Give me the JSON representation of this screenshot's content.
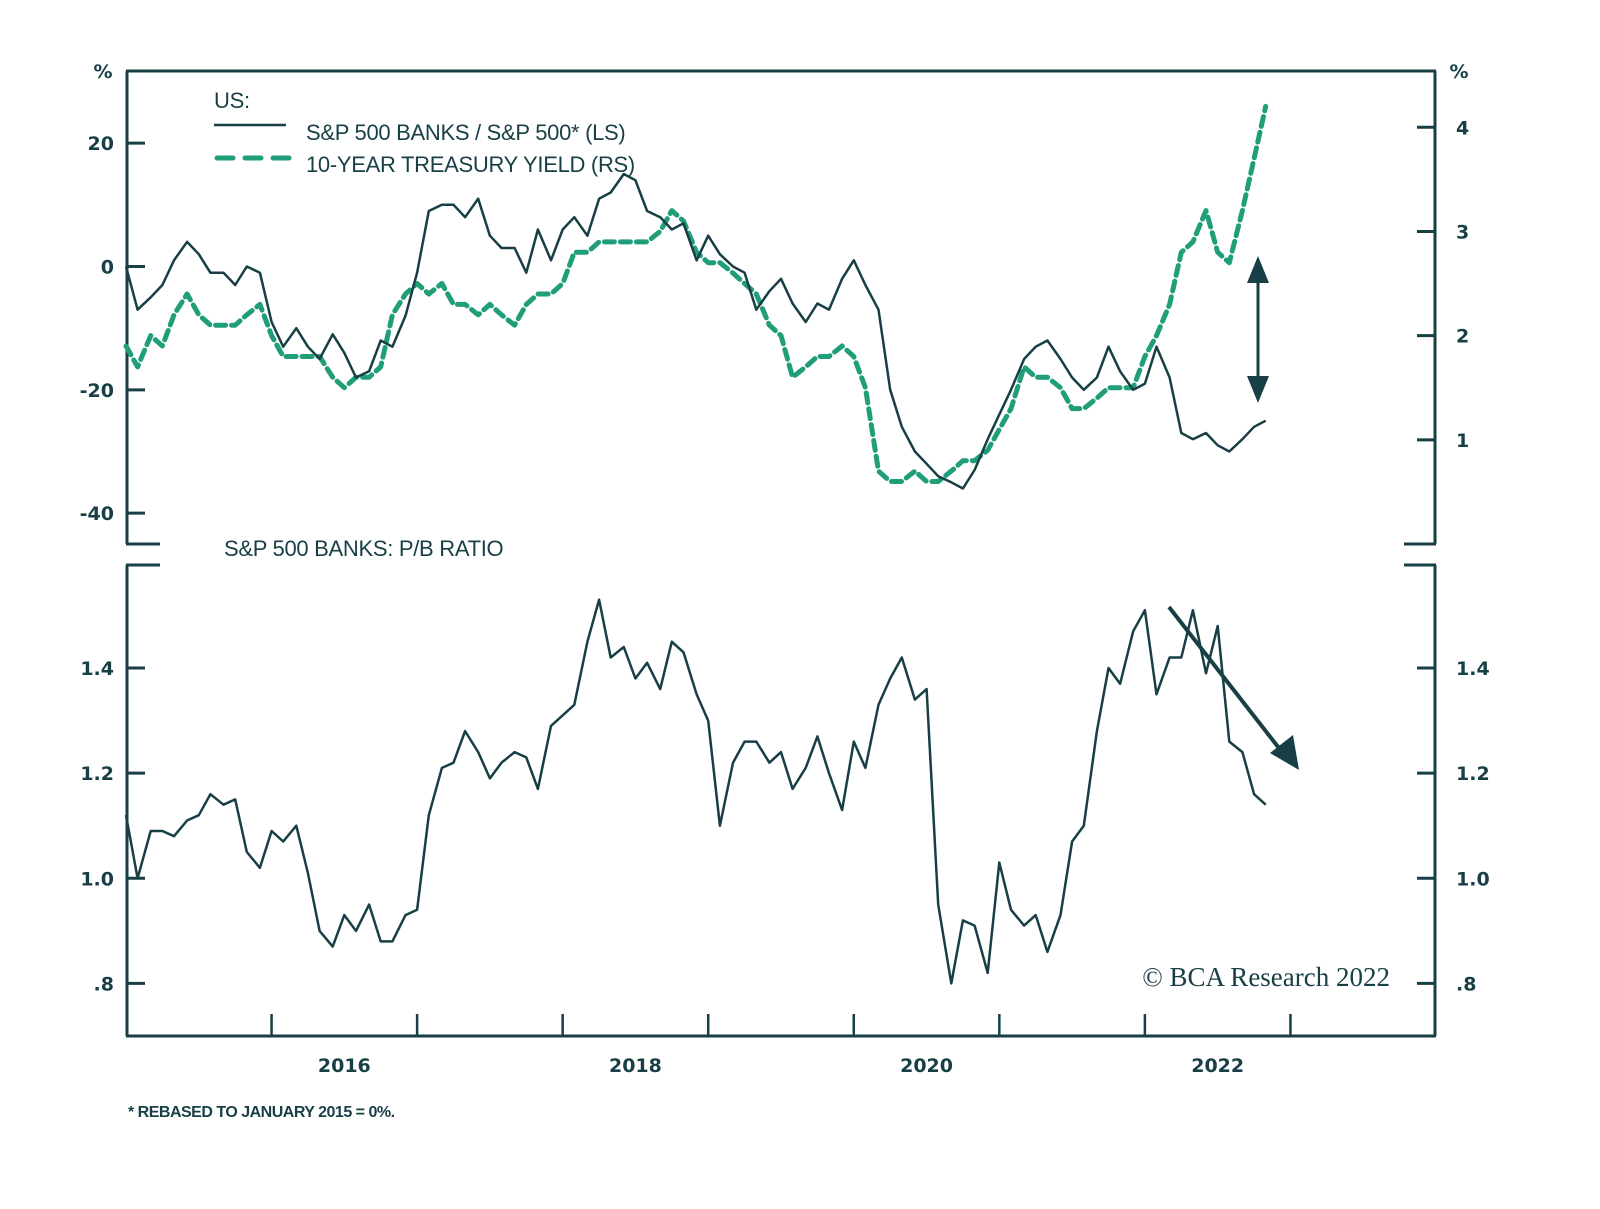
{
  "chart_data": [
    {
      "type": "line",
      "panel": "top",
      "legend_title": "US:",
      "legend_placement": "top-left",
      "left_axis": {
        "unit_label": "%",
        "ticks": [
          20,
          0,
          -20,
          -40
        ],
        "tick_labels": [
          "20",
          "0",
          "-20",
          "-40"
        ],
        "ylim": [
          -45,
          31.7
        ]
      },
      "right_axis": {
        "unit_label": "%",
        "ticks": [
          4,
          3,
          2,
          1
        ],
        "tick_labels": [
          "4",
          "3",
          "2",
          "1"
        ],
        "ylim": [
          0.0,
          4.54
        ]
      },
      "series": [
        {
          "name": "S&P 500 BANKS / S&P 500* (LS)",
          "axis": "left",
          "style": "solid",
          "color": "#173f45",
          "x": [
            2015.0,
            2015.08,
            2015.17,
            2015.25,
            2015.33,
            2015.42,
            2015.5,
            2015.58,
            2015.67,
            2015.75,
            2015.83,
            2015.92,
            2016.0,
            2016.08,
            2016.17,
            2016.25,
            2016.33,
            2016.42,
            2016.5,
            2016.58,
            2016.67,
            2016.75,
            2016.83,
            2016.92,
            2017.0,
            2017.08,
            2017.17,
            2017.25,
            2017.33,
            2017.42,
            2017.5,
            2017.58,
            2017.67,
            2017.75,
            2017.83,
            2017.92,
            2018.0,
            2018.08,
            2018.17,
            2018.25,
            2018.33,
            2018.42,
            2018.5,
            2018.58,
            2018.67,
            2018.75,
            2018.83,
            2018.92,
            2019.0,
            2019.08,
            2019.17,
            2019.25,
            2019.33,
            2019.42,
            2019.5,
            2019.58,
            2019.67,
            2019.75,
            2019.83,
            2019.92,
            2020.0,
            2020.08,
            2020.17,
            2020.25,
            2020.33,
            2020.42,
            2020.5,
            2020.58,
            2020.67,
            2020.75,
            2020.83,
            2020.92,
            2021.0,
            2021.08,
            2021.17,
            2021.25,
            2021.33,
            2021.42,
            2021.5,
            2021.58,
            2021.67,
            2021.75,
            2021.83,
            2021.92,
            2022.0,
            2022.08,
            2022.17,
            2022.25,
            2022.33,
            2022.42,
            2022.5,
            2022.58,
            2022.67,
            2022.75,
            2022.83
          ],
          "values": [
            0,
            -7,
            -5,
            -3,
            1,
            4,
            2,
            -1,
            -1,
            -3,
            0,
            -1,
            -9,
            -13,
            -10,
            -13,
            -15,
            -11,
            -14,
            -18,
            -17,
            -12,
            -13,
            -8,
            -1,
            9,
            10,
            10,
            8,
            11,
            5,
            3,
            3,
            -1,
            6,
            1,
            6,
            8,
            5,
            11,
            12,
            15,
            14,
            9,
            8,
            6,
            7,
            1,
            5,
            2,
            0,
            -1,
            -7,
            -4,
            -2,
            -6,
            -9,
            -6,
            -7,
            -2,
            1,
            -3,
            -7,
            -20,
            -26,
            -30,
            -32,
            -34,
            -35,
            -36,
            -33,
            -28,
            -24,
            -20,
            -15,
            -13,
            -12,
            -15,
            -18,
            -20,
            -18,
            -13,
            -17,
            -20,
            -19,
            -13,
            -18,
            -27,
            -28,
            -27,
            -29,
            -30,
            -28,
            -26,
            -25
          ],
          "annotation": "double-headed vertical arrow marking divergence from yield (2022)"
        },
        {
          "name": "10-YEAR TREASURY YIELD (RS)",
          "axis": "right",
          "style": "dashed",
          "color": "#1f9e79",
          "x": [
            2015.0,
            2015.08,
            2015.17,
            2015.25,
            2015.33,
            2015.42,
            2015.5,
            2015.58,
            2015.67,
            2015.75,
            2015.83,
            2015.92,
            2016.0,
            2016.08,
            2016.17,
            2016.25,
            2016.33,
            2016.42,
            2016.5,
            2016.58,
            2016.67,
            2016.75,
            2016.83,
            2016.92,
            2017.0,
            2017.08,
            2017.17,
            2017.25,
            2017.33,
            2017.42,
            2017.5,
            2017.58,
            2017.67,
            2017.75,
            2017.83,
            2017.92,
            2018.0,
            2018.08,
            2018.17,
            2018.25,
            2018.33,
            2018.42,
            2018.5,
            2018.58,
            2018.67,
            2018.75,
            2018.83,
            2018.92,
            2019.0,
            2019.08,
            2019.17,
            2019.25,
            2019.33,
            2019.42,
            2019.5,
            2019.58,
            2019.67,
            2019.75,
            2019.83,
            2019.92,
            2020.0,
            2020.08,
            2020.17,
            2020.25,
            2020.33,
            2020.42,
            2020.5,
            2020.58,
            2020.67,
            2020.75,
            2020.83,
            2020.92,
            2021.0,
            2021.08,
            2021.17,
            2021.25,
            2021.33,
            2021.42,
            2021.5,
            2021.58,
            2021.67,
            2021.75,
            2021.83,
            2021.92,
            2022.0,
            2022.08,
            2022.17,
            2022.25,
            2022.33,
            2022.42,
            2022.5,
            2022.58,
            2022.67,
            2022.75,
            2022.83
          ],
          "values": [
            1.9,
            1.7,
            2.0,
            1.9,
            2.2,
            2.4,
            2.2,
            2.1,
            2.1,
            2.1,
            2.2,
            2.3,
            2.0,
            1.8,
            1.8,
            1.8,
            1.8,
            1.6,
            1.5,
            1.6,
            1.6,
            1.7,
            2.2,
            2.4,
            2.5,
            2.4,
            2.5,
            2.3,
            2.3,
            2.2,
            2.3,
            2.2,
            2.1,
            2.3,
            2.4,
            2.4,
            2.5,
            2.8,
            2.8,
            2.9,
            2.9,
            2.9,
            2.9,
            2.9,
            3.0,
            3.2,
            3.1,
            2.8,
            2.7,
            2.7,
            2.6,
            2.5,
            2.4,
            2.1,
            2.0,
            1.6,
            1.7,
            1.8,
            1.8,
            1.9,
            1.8,
            1.5,
            0.7,
            0.6,
            0.6,
            0.7,
            0.6,
            0.6,
            0.7,
            0.8,
            0.8,
            0.9,
            1.1,
            1.3,
            1.7,
            1.6,
            1.6,
            1.5,
            1.3,
            1.3,
            1.4,
            1.5,
            1.5,
            1.5,
            1.8,
            2.0,
            2.3,
            2.8,
            2.9,
            3.2,
            2.8,
            2.7,
            3.2,
            3.7,
            4.2
          ]
        }
      ]
    },
    {
      "type": "line",
      "panel": "bottom",
      "title": "S&P 500 BANKS: P/B RATIO",
      "left_axis": {
        "ticks": [
          1.4,
          1.2,
          1.0,
          0.8
        ],
        "tick_labels": [
          "1.4",
          "1.2",
          "1.0",
          ".8"
        ],
        "ylim": [
          0.7,
          1.596
        ]
      },
      "right_axis": {
        "ticks": [
          1.4,
          1.2,
          1.0,
          0.8
        ],
        "tick_labels": [
          "1.4",
          "1.2",
          "1.0",
          ".8"
        ],
        "ylim": [
          0.7,
          1.596
        ]
      },
      "series": [
        {
          "name": "S&P 500 BANKS: P/B RATIO",
          "style": "solid",
          "color": "#173f45",
          "x": [
            2015.0,
            2015.08,
            2015.17,
            2015.25,
            2015.33,
            2015.42,
            2015.5,
            2015.58,
            2015.67,
            2015.75,
            2015.83,
            2015.92,
            2016.0,
            2016.08,
            2016.17,
            2016.25,
            2016.33,
            2016.42,
            2016.5,
            2016.58,
            2016.67,
            2016.75,
            2016.83,
            2016.92,
            2017.0,
            2017.08,
            2017.17,
            2017.25,
            2017.33,
            2017.42,
            2017.5,
            2017.58,
            2017.67,
            2017.75,
            2017.83,
            2017.92,
            2018.0,
            2018.08,
            2018.17,
            2018.25,
            2018.33,
            2018.42,
            2018.5,
            2018.58,
            2018.67,
            2018.75,
            2018.83,
            2018.92,
            2019.0,
            2019.08,
            2019.17,
            2019.25,
            2019.33,
            2019.42,
            2019.5,
            2019.58,
            2019.67,
            2019.75,
            2019.83,
            2019.92,
            2020.0,
            2020.08,
            2020.17,
            2020.25,
            2020.33,
            2020.42,
            2020.5,
            2020.58,
            2020.67,
            2020.75,
            2020.83,
            2020.92,
            2021.0,
            2021.08,
            2021.17,
            2021.25,
            2021.33,
            2021.42,
            2021.5,
            2021.58,
            2021.67,
            2021.75,
            2021.83,
            2021.92,
            2022.0,
            2022.08,
            2022.17,
            2022.25,
            2022.33,
            2022.42,
            2022.5,
            2022.58,
            2022.67,
            2022.75,
            2022.83
          ],
          "values": [
            1.12,
            1.0,
            1.09,
            1.09,
            1.08,
            1.11,
            1.12,
            1.16,
            1.14,
            1.15,
            1.05,
            1.02,
            1.09,
            1.07,
            1.1,
            1.01,
            0.9,
            0.87,
            0.93,
            0.9,
            0.95,
            0.88,
            0.88,
            0.93,
            0.94,
            1.12,
            1.21,
            1.22,
            1.28,
            1.24,
            1.19,
            1.22,
            1.24,
            1.23,
            1.17,
            1.29,
            1.31,
            1.33,
            1.45,
            1.53,
            1.42,
            1.44,
            1.38,
            1.41,
            1.36,
            1.45,
            1.43,
            1.35,
            1.3,
            1.1,
            1.22,
            1.26,
            1.26,
            1.22,
            1.24,
            1.17,
            1.21,
            1.27,
            1.2,
            1.13,
            1.26,
            1.21,
            1.33,
            1.38,
            1.42,
            1.34,
            1.36,
            0.95,
            0.8,
            0.92,
            0.91,
            0.82,
            1.03,
            0.94,
            0.91,
            0.93,
            0.86,
            0.93,
            1.07,
            1.1,
            1.28,
            1.4,
            1.37,
            1.47,
            1.51,
            1.35,
            1.42,
            1.42,
            1.51,
            1.39,
            1.48,
            1.26,
            1.24,
            1.16,
            1.14
          ],
          "annotation": "downward diagonal arrow indicating declining trend (2022)"
        }
      ]
    }
  ],
  "x_axis": {
    "ticks": [
      2016,
      2017,
      2018,
      2019,
      2020,
      2021,
      2022,
      2023
    ],
    "tick_labels": [
      "2016",
      "2018",
      "2020",
      "2022"
    ],
    "label_years": [
      2016,
      2018,
      2020,
      2022
    ],
    "xlim": [
      2015.0,
      2024.0
    ]
  },
  "text": {
    "legend_title": "US:",
    "legend_solid": "S&P 500 BANKS / S&P 500* (LS)",
    "legend_dashed": "10-YEAR TREASURY YIELD (RS)",
    "left_unit": "%",
    "right_unit": "%",
    "bottom_title": "S&P 500 BANKS: P/B RATIO",
    "copyright": "© BCA Research 2022",
    "footnote": "* REBASED TO JANUARY 2015 = 0%."
  },
  "colors": {
    "ink": "#173f45",
    "accent": "#1f9e79"
  }
}
